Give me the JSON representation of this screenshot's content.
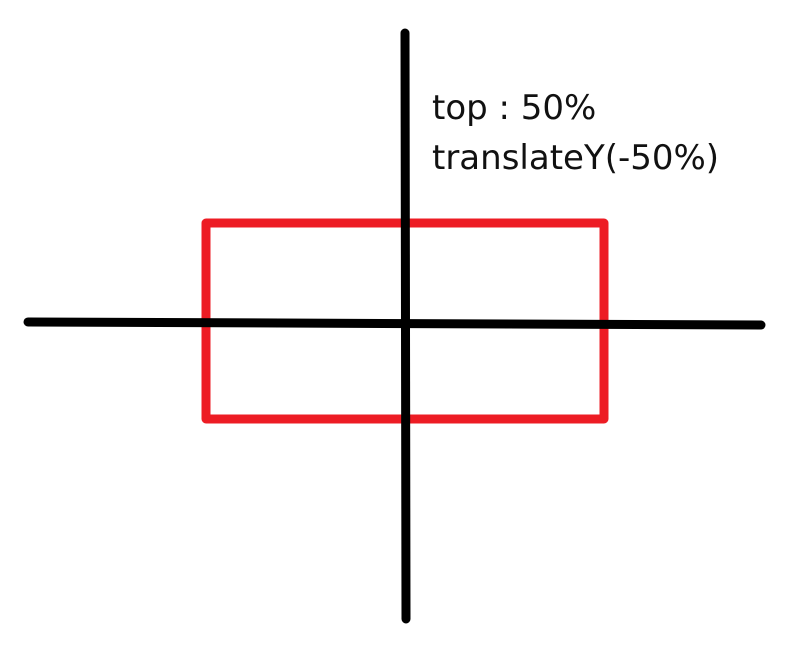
{
  "annotation": {
    "line1": "top : 50%",
    "line2": "translateY(-50%)"
  },
  "colors": {
    "box_stroke": "#ed1c24",
    "axis_stroke": "#000000",
    "background": "#ffffff"
  }
}
